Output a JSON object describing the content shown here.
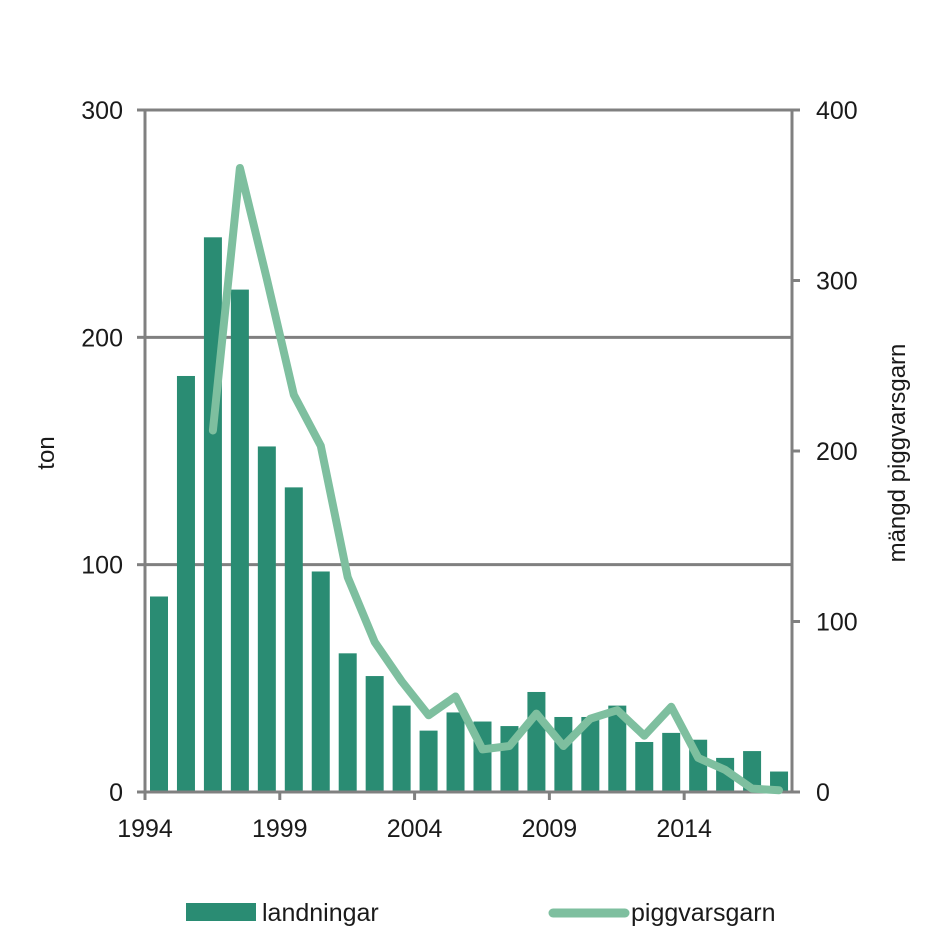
{
  "chart_data": {
    "type": "bar",
    "title": "",
    "xlabel": "",
    "ylabel": "ton",
    "y2label": "mängd piggvarsgarn",
    "ylim": [
      0,
      300
    ],
    "y2lim": [
      0,
      400
    ],
    "yticks": [
      0,
      100,
      200,
      300
    ],
    "y2ticks": [
      0,
      100,
      200,
      300,
      400
    ],
    "xtick_labels": [
      "1994",
      "1999",
      "2004",
      "2009",
      "2014"
    ],
    "grid": "horizontal",
    "legend_position": "bottom",
    "categories": [
      1994,
      1995,
      1996,
      1997,
      1998,
      1999,
      2000,
      2001,
      2002,
      2003,
      2004,
      2005,
      2006,
      2007,
      2008,
      2009,
      2010,
      2011,
      2012,
      2013,
      2014,
      2015,
      2016,
      2017
    ],
    "series": [
      {
        "name": "landningar",
        "type": "bar",
        "axis": "left",
        "color": "#2a8c73",
        "values": [
          86,
          183,
          244,
          221,
          152,
          134,
          97,
          61,
          51,
          38,
          27,
          35,
          31,
          29,
          44,
          33,
          33,
          38,
          22,
          26,
          23,
          15,
          18,
          9
        ]
      },
      {
        "name": "piggvarsgarn",
        "type": "line",
        "axis": "right",
        "color": "#7ebf9f",
        "values": [
          null,
          null,
          212,
          366,
          301,
          233,
          203,
          126,
          88,
          65,
          45,
          56,
          25,
          27,
          46,
          27,
          43,
          48,
          33,
          50,
          20,
          13,
          2,
          1
        ]
      }
    ]
  }
}
